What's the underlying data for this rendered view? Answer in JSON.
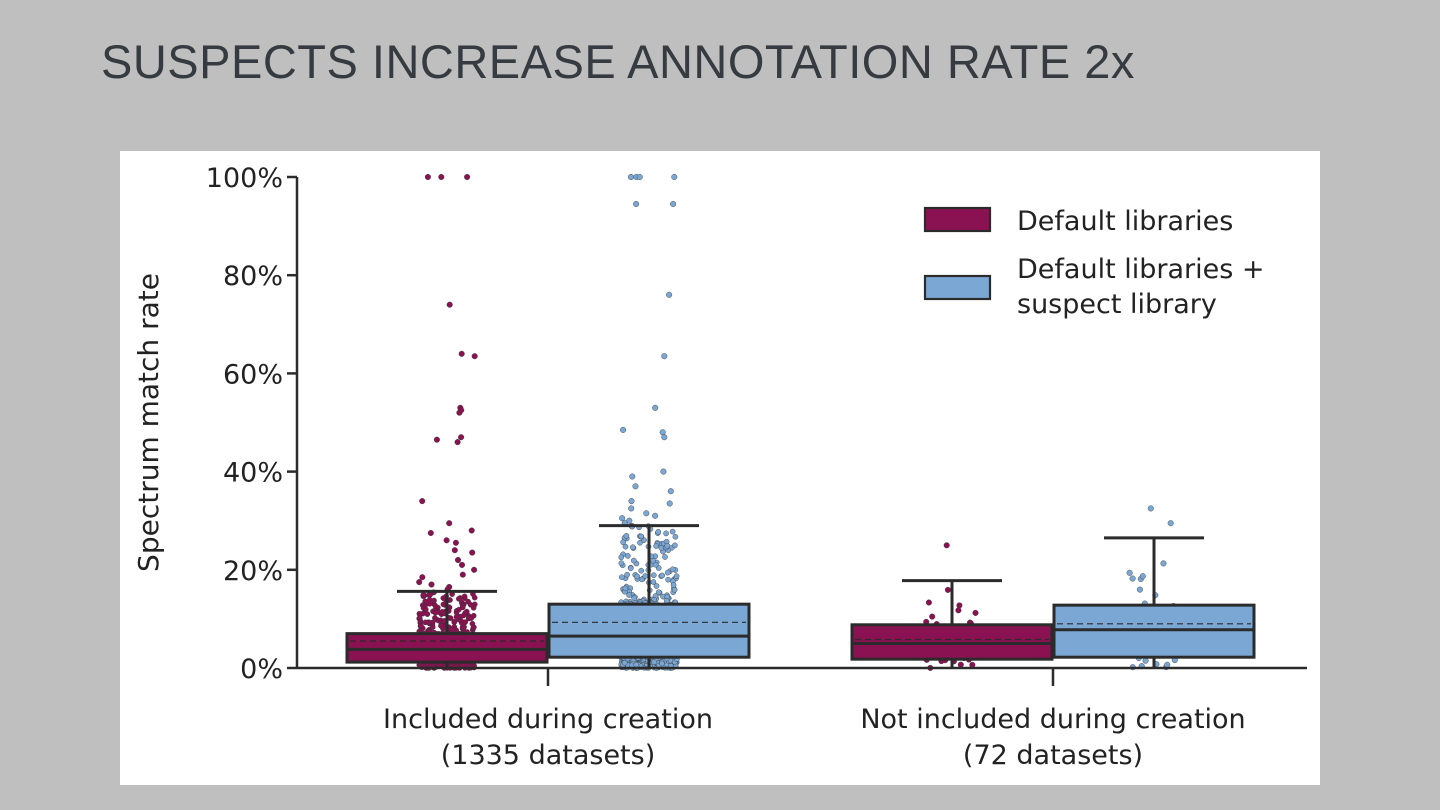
{
  "slide": {
    "title": "SUSPECTS INCREASE ANNOTATION RATE 2x"
  },
  "colors": {
    "default": "#8b1252",
    "suspect": "#7ba7d4",
    "edge": "#2b2b2b"
  },
  "chart_data": {
    "type": "box",
    "ylabel": "Spectrum match rate",
    "ylim": [
      0,
      100
    ],
    "yticks": [
      0,
      20,
      40,
      60,
      80,
      100
    ],
    "ytick_labels": [
      "0%",
      "20%",
      "40%",
      "60%",
      "80%",
      "100%"
    ],
    "legend_position": "top-right",
    "groups": [
      {
        "label_line1": "Included during creation",
        "label_line2": "(1335 datasets)"
      },
      {
        "label_line1": "Not included during creation",
        "label_line2": "(72 datasets)"
      }
    ],
    "series": [
      {
        "name": "Default libraries",
        "color": "#8b1252",
        "boxes": [
          {
            "group": 0,
            "whisker_low": 0,
            "q1": 1.2,
            "median": 3.8,
            "q3": 7.0,
            "whisker_high": 15.6,
            "mean": 5.5,
            "outliers": [
              100,
              100,
              100,
              74,
              64,
              63.5,
              53,
              52.5,
              52,
              47,
              46.5,
              46,
              34,
              29.5,
              28,
              27.5,
              26,
              25.5,
              24,
              23.5,
              22,
              21,
              20,
              19,
              18.5,
              17.5,
              17,
              16.5,
              16
            ]
          },
          {
            "group": 1,
            "whisker_low": 0,
            "q1": 1.8,
            "median": 5.0,
            "q3": 8.8,
            "whisker_high": 17.8,
            "mean": 5.8,
            "outliers": [
              25
            ]
          }
        ]
      },
      {
        "name": "Default libraries + suspect library",
        "color": "#7ba7d4",
        "boxes": [
          {
            "group": 0,
            "whisker_low": 0,
            "q1": 2.2,
            "median": 6.5,
            "q3": 13.0,
            "whisker_high": 29.0,
            "mean": 9.3,
            "outliers": [
              100,
              100,
              100,
              100,
              94.5,
              94.5,
              76,
              63.5,
              53,
              48.5,
              48,
              47,
              40,
              39,
              37,
              36,
              34,
              33.5,
              32.5,
              31.5,
              31,
              30.5,
              30,
              29.5
            ]
          },
          {
            "group": 1,
            "whisker_low": 0,
            "q1": 2.2,
            "median": 7.8,
            "q3": 12.8,
            "whisker_high": 26.5,
            "mean": 9.0,
            "outliers": [
              32.5,
              29.5
            ]
          }
        ]
      }
    ]
  }
}
